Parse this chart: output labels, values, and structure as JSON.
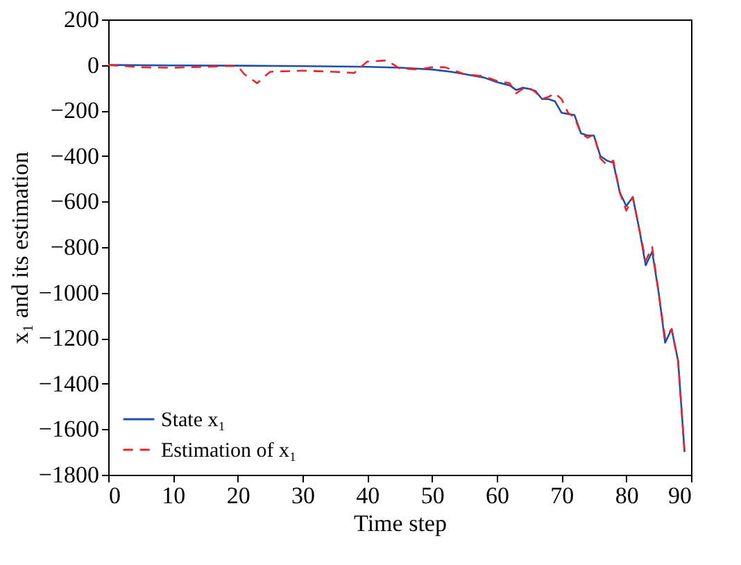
{
  "chart_data": {
    "type": "line",
    "xlabel": "Time step",
    "ylabel": "x₁ and its estimation",
    "xlim": [
      0,
      90
    ],
    "xticks": [
      0,
      10,
      20,
      30,
      40,
      50,
      60,
      70,
      80,
      90
    ],
    "ylim": [
      -1800,
      200
    ],
    "yticks": [
      200,
      0,
      -200,
      -400,
      -600,
      -800,
      -1000,
      -1200,
      -1400,
      -1600,
      -1800
    ],
    "grid": false,
    "legend": "bottom left",
    "series": [
      {
        "name": "State x₁",
        "color": "#1f4ea8",
        "line_style": "solid",
        "x": [
          0,
          10,
          20,
          30,
          40,
          45,
          50,
          53,
          55,
          58,
          60,
          62,
          63,
          64,
          65,
          66,
          67,
          68,
          69,
          70,
          71,
          72,
          73,
          74,
          75,
          76,
          77,
          78,
          79,
          80,
          81,
          82,
          83,
          84,
          85,
          86,
          87,
          88,
          89
        ],
        "values": [
          0,
          -2,
          -3,
          -5,
          -8,
          -12,
          -20,
          -30,
          -40,
          -55,
          -75,
          -90,
          -110,
          -100,
          -105,
          -115,
          -150,
          -150,
          -160,
          -210,
          -215,
          -220,
          -300,
          -310,
          -310,
          -400,
          -420,
          -430,
          -560,
          -620,
          -580,
          -720,
          -880,
          -820,
          -1000,
          -1220,
          -1160,
          -1300,
          -1700
        ]
      },
      {
        "name": "Estimation of x₁",
        "color": "#e8262b",
        "line_style": "dashed",
        "x": [
          0,
          5,
          10,
          15,
          18,
          20,
          21,
          23,
          25,
          30,
          35,
          38,
          40,
          43,
          45,
          48,
          50,
          52,
          55,
          58,
          60,
          62,
          63,
          64,
          65,
          66,
          67,
          68,
          69,
          70,
          71,
          72,
          73,
          74,
          75,
          76,
          77,
          78,
          79,
          80,
          81,
          82,
          83,
          84,
          85,
          86,
          87,
          88,
          89
        ],
        "values": [
          0,
          -10,
          -12,
          -8,
          -5,
          -5,
          -40,
          -80,
          -30,
          -25,
          -30,
          -35,
          15,
          20,
          -15,
          -20,
          -10,
          -10,
          -40,
          -50,
          -70,
          -80,
          -125,
          -105,
          -100,
          -120,
          -150,
          -140,
          -125,
          -150,
          -210,
          -230,
          -300,
          -320,
          -305,
          -410,
          -440,
          -420,
          -560,
          -640,
          -580,
          -720,
          -860,
          -800,
          -1000,
          -1200,
          -1160,
          -1300,
          -1700
        ]
      }
    ]
  }
}
